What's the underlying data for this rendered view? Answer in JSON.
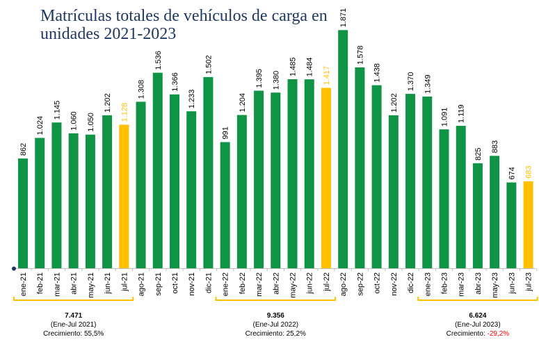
{
  "chart_data": {
    "type": "bar",
    "title": "Matrículas totales de vehículos de carga en unidades 2021-2023",
    "categories": [
      "ene-21",
      "feb-21",
      "mar-21",
      "abr-21",
      "may-21",
      "jun-21",
      "jul-21",
      "ago-21",
      "sep-21",
      "oct-21",
      "nov-21",
      "dic-21",
      "ene-22",
      "feb-22",
      "mar-22",
      "abr-22",
      "may-22",
      "jun-22",
      "jul-22",
      "ago-22",
      "sep-22",
      "oct-22",
      "nov-22",
      "dic-22",
      "ene-23",
      "feb-23",
      "mar-23",
      "abr-23",
      "may-23",
      "jun-23",
      "jul-23"
    ],
    "values": [
      862,
      1024,
      1145,
      1060,
      1050,
      1202,
      1128,
      1308,
      1536,
      1366,
      1233,
      1502,
      991,
      1204,
      1395,
      1380,
      1485,
      1484,
      1417,
      1871,
      1578,
      1438,
      1202,
      1370,
      1349,
      1091,
      1119,
      825,
      883,
      674,
      683
    ],
    "value_labels": [
      "862",
      "1.024",
      "1.145",
      "1.060",
      "1.050",
      "1.202",
      "1.128",
      "1.308",
      "1.536",
      "1.366",
      "1.233",
      "1.502",
      "991",
      "1.204",
      "1.395",
      "1.380",
      "1.485",
      "1.484",
      "1.417",
      "1.871",
      "1.578",
      "1.438",
      "1.202",
      "1.370",
      "1.349",
      "1.091",
      "1.119",
      "825",
      "883",
      "674",
      "683"
    ],
    "highlighted": [
      "jul-21",
      "jul-22",
      "jul-23"
    ],
    "ylim": [
      0,
      1900
    ],
    "xlabel": "",
    "ylabel": "",
    "grid": false,
    "colors": {
      "bar": "#0e9444",
      "highlight": "#ffc000",
      "axis": "#bfbfbf",
      "axis_dot": "#1f3864",
      "bracket": "#ffc000",
      "title": "#1f3864",
      "negative": "#ff0000"
    },
    "annotations": [
      {
        "total": "7.471",
        "period": "(Ene-Jul 2021)",
        "growth_label": "Crecimiento:",
        "growth": "55,5%",
        "negative": false,
        "from": "ene-21",
        "to": "jul-21"
      },
      {
        "total": "9.356",
        "period": "(Ene-Jul 2022)",
        "growth_label": "Crecimiento:",
        "growth": "25,2%",
        "negative": false,
        "from": "ene-22",
        "to": "jul-22"
      },
      {
        "total": "6.624",
        "period": "(Ene-Jul 2023)",
        "growth_label": "Crecimiento:",
        "growth": "-29,2%",
        "negative": true,
        "from": "ene-23",
        "to": "jul-23"
      }
    ]
  }
}
